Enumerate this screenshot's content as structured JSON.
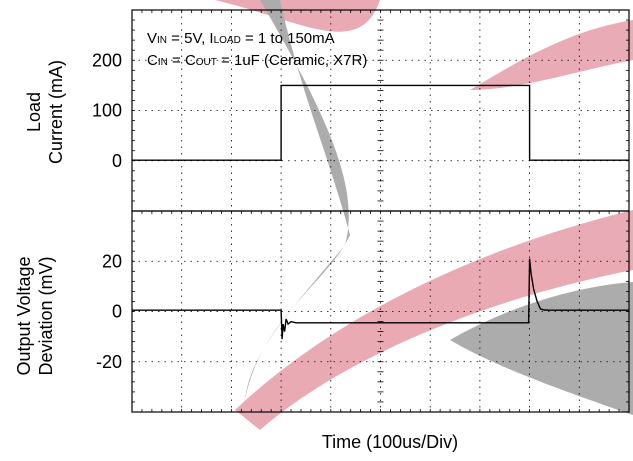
{
  "conditions": {
    "line1": {
      "v": "V",
      "v_sub": "IN",
      "v_val": " = 5V, I",
      "i_sub": "LOAD",
      "i_val": " = 1 to 150mA"
    },
    "line2": {
      "c": "C",
      "c_sub": "IN",
      "eq": " = C",
      "cout_sub": "OUT",
      "rest": " = 1uF (Ceramic, X7R)"
    }
  },
  "colors": {
    "trace": "#000000",
    "watermark_red": "#e8a6b1",
    "watermark_gray": "#a8a8a8",
    "grid": "#000000"
  },
  "chart_data": [
    {
      "type": "line",
      "panel": "top",
      "ylabel_line1": "Load",
      "ylabel_line2": "Current (mA)",
      "yticks": [
        "0",
        "100",
        "200"
      ],
      "ytick_values": [
        0,
        100,
        200
      ],
      "ylim": [
        -100,
        300
      ],
      "xlim": [
        0,
        10
      ],
      "xlabel": "",
      "series": [
        {
          "x": [
            0,
            3.0,
            3.0,
            8.0,
            8.0,
            10.0
          ],
          "y": [
            1,
            1,
            150,
            150,
            1,
            1
          ]
        }
      ]
    },
    {
      "type": "line",
      "panel": "bottom",
      "ylabel_line1": "Output Voltage",
      "ylabel_line2": "Deviation (mV)",
      "yticks": [
        "-20",
        "0",
        "20"
      ],
      "ytick_values": [
        -20,
        0,
        20
      ],
      "ylim": [
        -40,
        40
      ],
      "xlim": [
        0,
        10
      ],
      "xlabel": "Time (100us/Div)",
      "series": [
        {
          "x": [
            0,
            3.0,
            3.02,
            3.04,
            3.07,
            3.1,
            3.14,
            3.2,
            3.3,
            4.0,
            5.0,
            6.0,
            7.0,
            7.98,
            8.0,
            8.03,
            8.08,
            8.15,
            8.22,
            8.3,
            8.4,
            8.6,
            9.0,
            10.0
          ],
          "y": [
            0.5,
            0.5,
            -11,
            -5,
            -8,
            -3,
            -5,
            -4,
            -4.5,
            -4.5,
            -4.5,
            -4.5,
            -4.5,
            -4.5,
            21,
            15,
            9,
            4,
            1,
            0.6,
            0.5,
            0.5,
            0.5,
            0.5
          ]
        }
      ]
    }
  ]
}
